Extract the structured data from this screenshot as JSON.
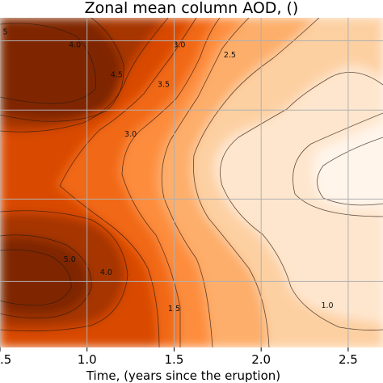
{
  "chart_data": {
    "type": "contour",
    "title": "Zonal mean column AOD, ()",
    "xlabel": "Time, (years since the eruption)",
    "ylabel": "",
    "xlim": [
      0.5,
      2.7
    ],
    "x_ticks": [
      0.5,
      1.0,
      1.5,
      2.0,
      2.5
    ],
    "x_tick_labels": [
      ".5",
      "1.0",
      "1.5",
      "2.0",
      "2.5"
    ],
    "grid": true,
    "colormap": [
      "#fff5eb",
      "#fee6ce",
      "#fdd0a2",
      "#fdae6b",
      "#fd8d3c",
      "#f16913",
      "#d94801",
      "#a63603",
      "#7f2704"
    ],
    "contour_levels": [
      1.0,
      1.5,
      2.0,
      2.5,
      3.0,
      3.5,
      4.0,
      4.5,
      5.0
    ],
    "contour_labels": [
      {
        "text": "4.0",
        "x": 0.93,
        "y": 0.91
      },
      {
        "text": "4.5",
        "x": 1.17,
        "y": 0.82
      },
      {
        "text": "3.0",
        "x": 1.53,
        "y": 0.91
      },
      {
        "text": "2.5",
        "x": 1.82,
        "y": 0.88
      },
      {
        "text": "3.5",
        "x": 1.44,
        "y": 0.79
      },
      {
        "text": "3.0",
        "x": 1.25,
        "y": 0.64
      },
      {
        "text": "5.0",
        "x": 0.9,
        "y": 0.26
      },
      {
        "text": "4.0",
        "x": 1.11,
        "y": 0.22
      },
      {
        "text": "1.5",
        "x": 1.5,
        "y": 0.11
      },
      {
        "text": "1.0",
        "x": 2.38,
        "y": 0.12
      },
      {
        "text": "5",
        "x": 0.53,
        "y": 0.95
      }
    ]
  }
}
